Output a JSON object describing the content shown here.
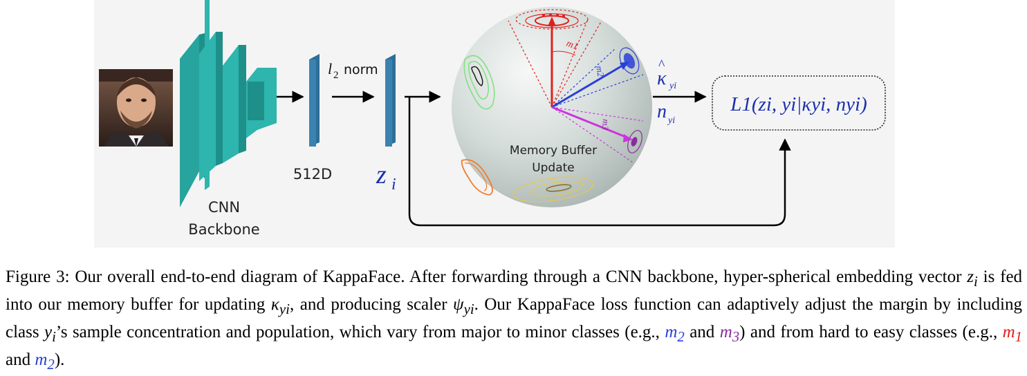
{
  "diagram": {
    "backbone_label_line1": "CNN",
    "backbone_label_line2": "Backbone",
    "dim_label": "512D",
    "norm_label_math": "l",
    "norm_label_sub": "2",
    "norm_label_text": "norm",
    "embedding_label": "z",
    "embedding_sub": "i",
    "sphere_label_line1": "Memory Buffer",
    "sphere_label_line2": "Update",
    "margin_labels": [
      "m1",
      "m2",
      "m3"
    ],
    "kappa_label": "κ",
    "kappa_sub": "yi",
    "n_label": "n",
    "n_sub": "yi",
    "loss_label": "L1(zi, yi|κyi, nyi)",
    "colors": {
      "backbone": "#2db5ae",
      "backbone_dark": "#1f8f89",
      "embedding_bar": "#2d6f99",
      "sphere": "#c6d0cc",
      "red": "#e0201e",
      "blue": "#2a3fd8",
      "purple": "#cc33dd",
      "green": "#7fe07f",
      "orange": "#f07b2a",
      "yellow": "#e6c84d",
      "math_blue": "#1b2fae"
    }
  },
  "caption": {
    "figure_label": "Figure 3:",
    "part1": "Our overall end-to-end diagram of KappaFace. After forwarding through a CNN backbone, hyper-spherical embedding vector",
    "z": "z",
    "z_sub": "i",
    "part2": "is fed into our memory buffer for updating",
    "kappa": "κ",
    "kappa_sub": "yi",
    "part3": ", and producing scaler",
    "psi": "ψ",
    "psi_sub": "yi",
    "part4": ". Our KappaFace loss function can adaptively adjust the margin by including class",
    "y": "y",
    "y_sub": "i",
    "part5": "’s sample concentration and population, which vary from major to minor classes (e.g.,",
    "m2": "m",
    "m2_sub": "2",
    "and1": "and",
    "m3": "m",
    "m3_sub": "3",
    "part6": ") and from hard to easy classes (e.g.,",
    "m1": "m",
    "m1_sub": "1",
    "and2": "and",
    "m2b": "m",
    "m2b_sub": "2",
    "end": ")."
  }
}
